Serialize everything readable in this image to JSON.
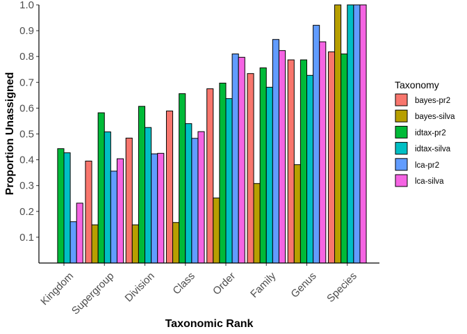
{
  "chart_data": {
    "type": "bar",
    "xlabel": "Taxonomic Rank",
    "ylabel": "Proportion Unassigned",
    "ylim": [
      0,
      1.0
    ],
    "yticks": [
      "0.1",
      "0.2",
      "0.3",
      "0.4",
      "0.5",
      "0.6",
      "0.7",
      "0.8",
      "0.9",
      "1.0"
    ],
    "categories": [
      "Kingdom",
      "Supergroup",
      "Division",
      "Class",
      "Order",
      "Family",
      "Genus",
      "Species"
    ],
    "legend_title": "Taxonomy",
    "legend_position": "right",
    "grid": false,
    "series": [
      {
        "name": "bayes-pr2",
        "color": "#F8766D",
        "values": [
          0.0,
          0.395,
          0.484,
          0.589,
          0.675,
          0.734,
          0.787,
          0.818
        ]
      },
      {
        "name": "bayes-silva",
        "color": "#B79F00",
        "values": [
          0.0,
          0.148,
          0.148,
          0.157,
          0.252,
          0.308,
          0.381,
          1.0
        ]
      },
      {
        "name": "idtax-pr2",
        "color": "#00BA38",
        "values": [
          0.443,
          0.582,
          0.607,
          0.656,
          0.697,
          0.756,
          0.787,
          0.81
        ]
      },
      {
        "name": "idtax-silva",
        "color": "#00BFC4",
        "values": [
          0.427,
          0.508,
          0.525,
          0.54,
          0.637,
          0.681,
          0.727,
          1.0
        ]
      },
      {
        "name": "lca-pr2",
        "color": "#619CFF",
        "values": [
          0.16,
          0.356,
          0.423,
          0.483,
          0.81,
          0.866,
          0.921,
          1.0
        ]
      },
      {
        "name": "lca-silva",
        "color": "#F564E3",
        "values": [
          0.232,
          0.404,
          0.425,
          0.509,
          0.797,
          0.823,
          0.857,
          1.0
        ]
      }
    ]
  }
}
